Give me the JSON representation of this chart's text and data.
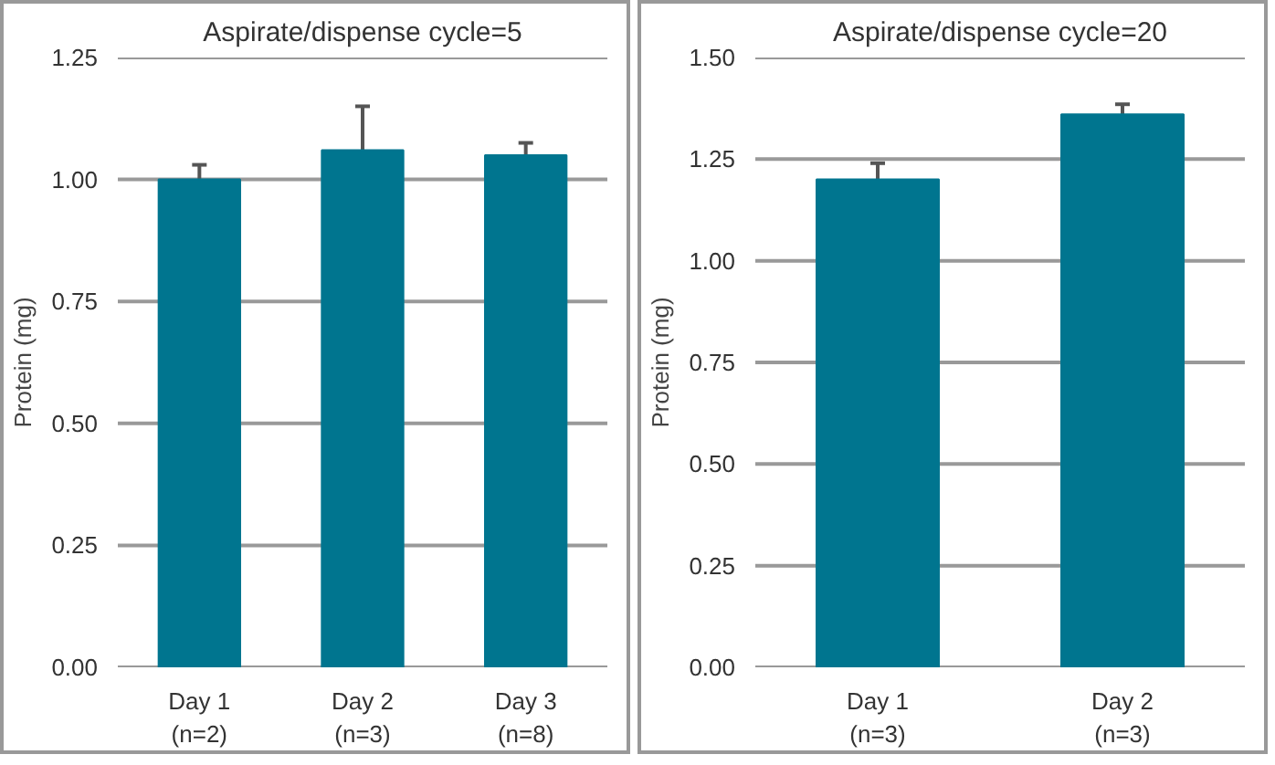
{
  "chart_data": [
    {
      "type": "bar",
      "title": "Aspirate/dispense cycle=5",
      "ylabel": "Protein (mg)",
      "categories": [
        "Day 1\n(n=2)",
        "Day 2\n(n=3)",
        "Day 3\n(n=8)"
      ],
      "values": [
        1.0,
        1.06,
        1.05
      ],
      "errors": [
        0.03,
        0.09,
        0.025
      ],
      "color": "#00758f",
      "ylim": [
        0,
        1.25
      ],
      "yticks": [
        {
          "value": 0,
          "label": "0.00"
        },
        {
          "value": 0.25,
          "label": "0.25"
        },
        {
          "value": 0.5,
          "label": "0.50"
        },
        {
          "value": 0.75,
          "label": "0.75"
        },
        {
          "value": 1,
          "label": "1.00"
        },
        {
          "value": 1.25,
          "label": "1.25"
        }
      ],
      "grid": "y"
    },
    {
      "type": "bar",
      "title": "Aspirate/dispense cycle=20",
      "ylabel": "Protein (mg)",
      "categories": [
        "Day 1\n(n=3)",
        "Day 2\n(n=3)"
      ],
      "values": [
        1.2,
        1.36
      ],
      "errors": [
        0.04,
        0.025
      ],
      "color": "#00758f",
      "ylim": [
        0,
        1.5
      ],
      "yticks": [
        {
          "value": 0,
          "label": "0.00"
        },
        {
          "value": 0.25,
          "label": "0.25"
        },
        {
          "value": 0.5,
          "label": "0.50"
        },
        {
          "value": 0.75,
          "label": "0.75"
        },
        {
          "value": 1,
          "label": "1.00"
        },
        {
          "value": 1.25,
          "label": "1.25"
        },
        {
          "value": 1.5,
          "label": "1.50"
        }
      ],
      "grid": "y"
    }
  ]
}
